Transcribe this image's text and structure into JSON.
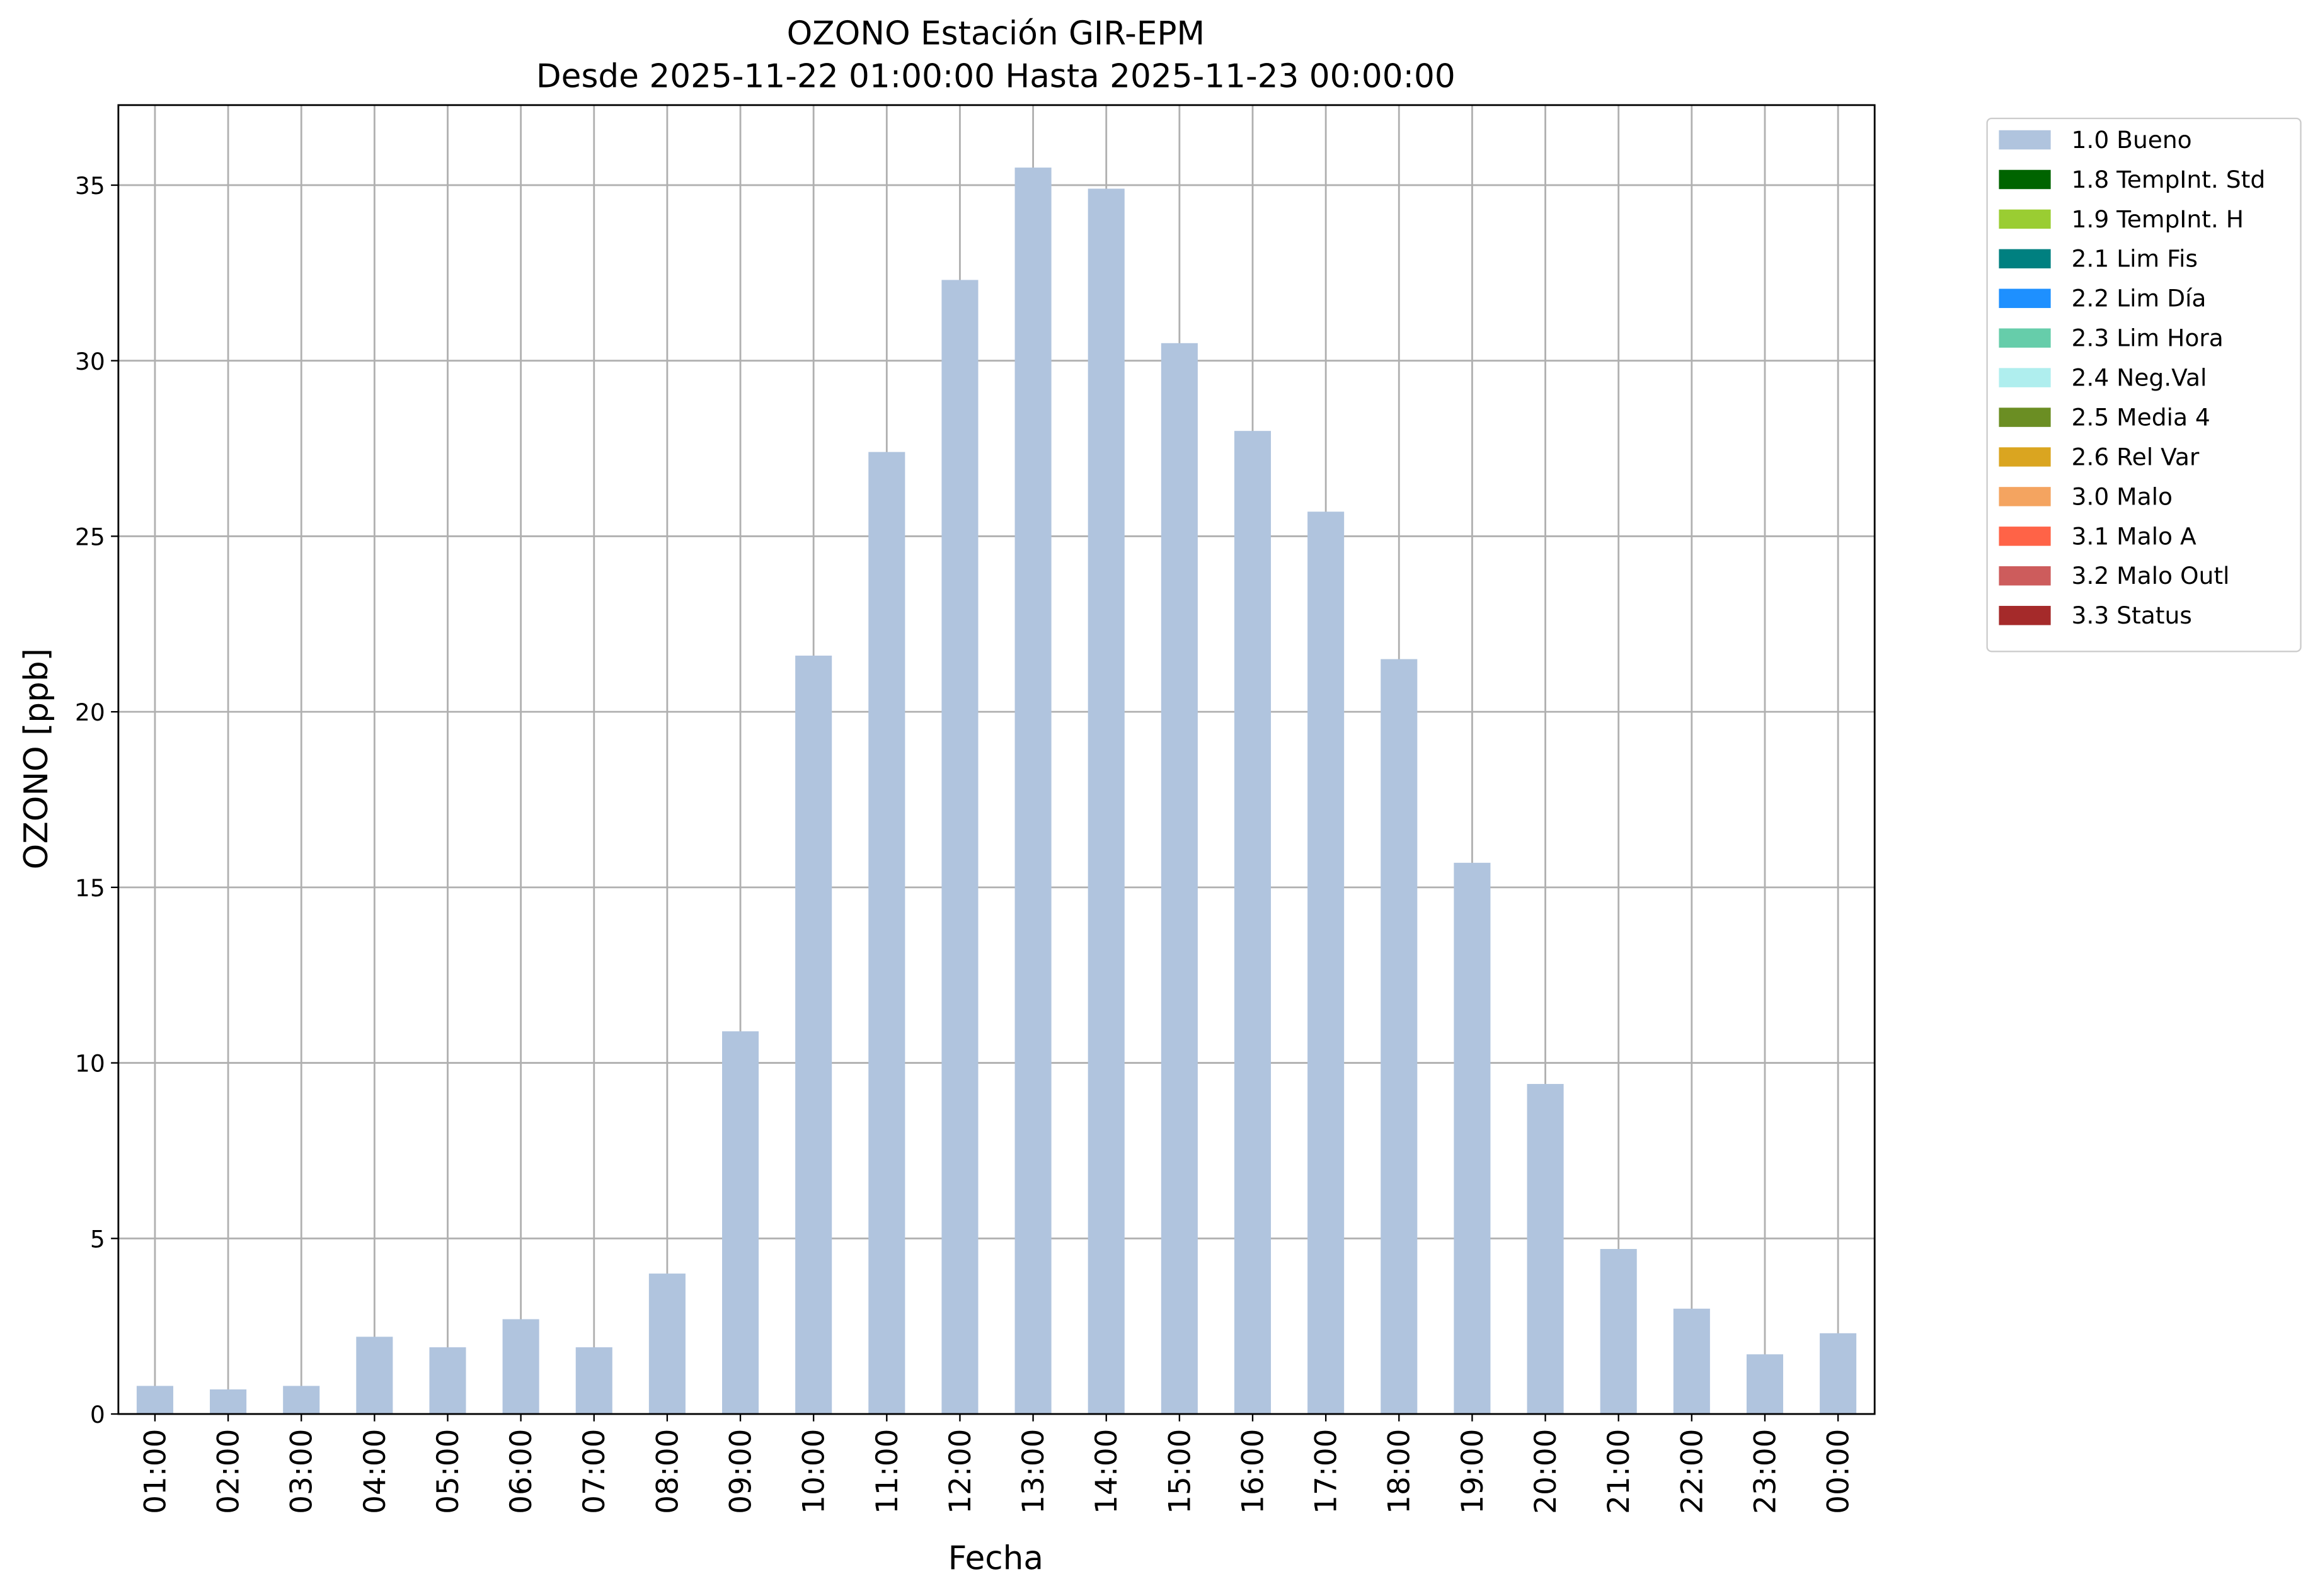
{
  "chart_data": {
    "type": "bar",
    "stacked": true,
    "title": "OZONO Estación GIR-EPM",
    "subtitle": "Desde 2025-11-22 01:00:00 Hasta 2025-11-23 00:00:00",
    "x_label": "Fecha",
    "y_label": "OZONO [ppb]",
    "categories": [
      "01:00",
      "02:00",
      "03:00",
      "04:00",
      "05:00",
      "06:00",
      "07:00",
      "08:00",
      "09:00",
      "10:00",
      "11:00",
      "12:00",
      "13:00",
      "14:00",
      "15:00",
      "16:00",
      "17:00",
      "18:00",
      "19:00",
      "20:00",
      "21:00",
      "22:00",
      "23:00",
      "00:00"
    ],
    "series": [
      {
        "name": "1.0 Bueno",
        "color": "#b0c4de",
        "values": [
          0.8,
          0.7,
          0.8,
          2.2,
          1.9,
          2.7,
          1.9,
          4.0,
          10.9,
          21.6,
          27.4,
          32.3,
          35.5,
          34.9,
          30.5,
          28.0,
          25.7,
          21.5,
          15.7,
          9.4,
          4.7,
          3.0,
          1.7,
          2.3
        ]
      },
      {
        "name": "1.8 TempInt. Std",
        "color": "#006400",
        "values": [
          null,
          null,
          null,
          null,
          null,
          null,
          null,
          null,
          null,
          null,
          null,
          null,
          null,
          null,
          null,
          null,
          null,
          null,
          null,
          null,
          null,
          null,
          null,
          null
        ]
      },
      {
        "name": "1.9 TempInt. H",
        "color": "#9acd32",
        "values": [
          null,
          null,
          null,
          null,
          null,
          null,
          null,
          null,
          null,
          null,
          null,
          null,
          null,
          null,
          null,
          null,
          null,
          null,
          null,
          null,
          null,
          null,
          null,
          null
        ]
      },
      {
        "name": "2.1 Lim Fis",
        "color": "#008080",
        "values": [
          null,
          null,
          null,
          null,
          null,
          null,
          null,
          null,
          null,
          null,
          null,
          null,
          null,
          null,
          null,
          null,
          null,
          null,
          null,
          null,
          null,
          null,
          null,
          null
        ]
      },
      {
        "name": "2.2 Lim Día",
        "color": "#1e90ff",
        "values": [
          null,
          null,
          null,
          null,
          null,
          null,
          null,
          null,
          null,
          null,
          null,
          null,
          null,
          null,
          null,
          null,
          null,
          null,
          null,
          null,
          null,
          null,
          null,
          null
        ]
      },
      {
        "name": "2.3 Lim Hora",
        "color": "#66cdaa",
        "values": [
          null,
          null,
          null,
          null,
          null,
          null,
          null,
          null,
          null,
          null,
          null,
          null,
          null,
          null,
          null,
          null,
          null,
          null,
          null,
          null,
          null,
          null,
          null,
          null
        ]
      },
      {
        "name": "2.4 Neg.Val",
        "color": "#afeeee",
        "values": [
          null,
          null,
          null,
          null,
          null,
          null,
          null,
          null,
          null,
          null,
          null,
          null,
          null,
          null,
          null,
          null,
          null,
          null,
          null,
          null,
          null,
          null,
          null,
          null
        ]
      },
      {
        "name": "2.5 Media 4",
        "color": "#6b8e23",
        "values": [
          null,
          null,
          null,
          null,
          null,
          null,
          null,
          null,
          null,
          null,
          null,
          null,
          null,
          null,
          null,
          null,
          null,
          null,
          null,
          null,
          null,
          null,
          null,
          null
        ]
      },
      {
        "name": "2.6 Rel Var",
        "color": "#daa520",
        "values": [
          null,
          null,
          null,
          null,
          null,
          null,
          null,
          null,
          null,
          null,
          null,
          null,
          null,
          null,
          null,
          null,
          null,
          null,
          null,
          null,
          null,
          null,
          null,
          null
        ]
      },
      {
        "name": "3.0 Malo",
        "color": "#f4a460",
        "values": [
          null,
          null,
          null,
          null,
          null,
          null,
          null,
          null,
          null,
          null,
          null,
          null,
          null,
          null,
          null,
          null,
          null,
          null,
          null,
          null,
          null,
          null,
          null,
          null
        ]
      },
      {
        "name": "3.1 Malo A",
        "color": "#ff6347",
        "values": [
          null,
          null,
          null,
          null,
          null,
          null,
          null,
          null,
          null,
          null,
          null,
          null,
          null,
          null,
          null,
          null,
          null,
          null,
          null,
          null,
          null,
          null,
          null,
          null
        ]
      },
      {
        "name": "3.2 Malo Outl",
        "color": "#cd5c5c",
        "values": [
          null,
          null,
          null,
          null,
          null,
          null,
          null,
          null,
          null,
          null,
          null,
          null,
          null,
          null,
          null,
          null,
          null,
          null,
          null,
          null,
          null,
          null,
          null,
          null
        ]
      },
      {
        "name": "3.3 Status",
        "color": "#a52a2a",
        "values": [
          null,
          null,
          null,
          null,
          null,
          null,
          null,
          null,
          null,
          null,
          null,
          null,
          null,
          null,
          null,
          null,
          null,
          null,
          null,
          null,
          null,
          null,
          null,
          null
        ]
      }
    ],
    "ylim": [
      0,
      37.28
    ],
    "yticks": [
      0,
      5,
      10,
      15,
      20,
      25,
      30,
      35
    ],
    "grid": true,
    "legend": "outside-upper-right"
  }
}
